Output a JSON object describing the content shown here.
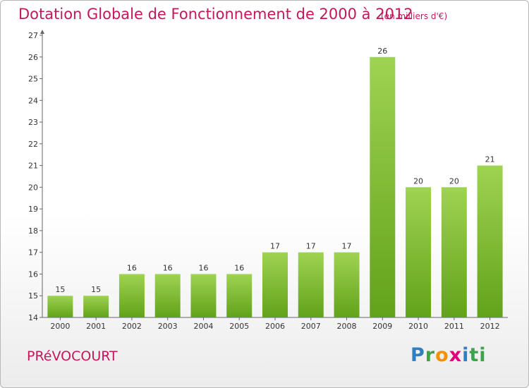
{
  "chart_data": {
    "type": "bar",
    "title": "Dotation Globale de Fonctionnement de 2000 à 2012",
    "subtitle": "(en milliers d'€)",
    "categories": [
      "2000",
      "2001",
      "2002",
      "2003",
      "2004",
      "2005",
      "2006",
      "2007",
      "2008",
      "2009",
      "2010",
      "2011",
      "2012"
    ],
    "values": [
      15,
      15,
      16,
      16,
      16,
      16,
      17,
      17,
      17,
      26,
      20,
      20,
      21
    ],
    "ylim": [
      14,
      27
    ],
    "yticks": [
      14,
      15,
      16,
      17,
      18,
      19,
      20,
      21,
      22,
      23,
      24,
      25,
      26,
      27
    ],
    "grid": false,
    "colors": {
      "bar_top": "#9fd352",
      "bar_bottom": "#62a21a",
      "text": "#c2185b"
    }
  },
  "commune": "PRéVOCOURT",
  "logo": {
    "parts": [
      "P",
      "r",
      "o",
      "x",
      "i",
      "ti"
    ],
    "alt": "Proxiti"
  }
}
